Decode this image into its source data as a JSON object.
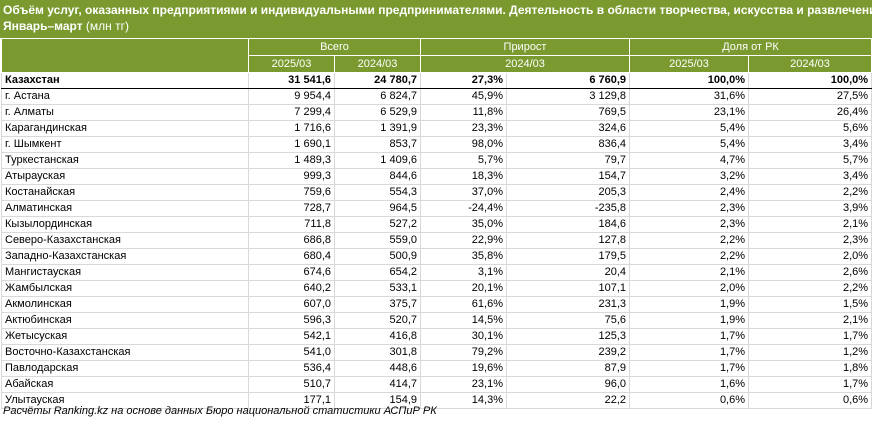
{
  "header": {
    "title": "Объём услуг, оказанных предприятиями и индивидуальными предпринимателями. Деятельность в области творчества, искусства и развлечений.",
    "period": "Январь–март",
    "unit": " (млн тг)"
  },
  "columns": {
    "group_total": "Всего",
    "group_growth": "Прирост",
    "group_share": "Доля от РК",
    "total_y1": "2025/03",
    "total_y2": "2024/03",
    "growth_period": "2024/03",
    "share_y1": "2025/03",
    "share_y2": "2024/03"
  },
  "rows": [
    {
      "name": "Казахстан",
      "v2025": "31 541,6",
      "v2024": "24 780,7",
      "pct": "27,3%",
      "abs": "6 760,9",
      "s2025": "100,0%",
      "s2024": "100,0%"
    },
    {
      "name": "г. Астана",
      "v2025": "9 954,4",
      "v2024": "6 824,7",
      "pct": "45,9%",
      "abs": "3 129,8",
      "s2025": "31,6%",
      "s2024": "27,5%"
    },
    {
      "name": "г. Алматы",
      "v2025": "7 299,4",
      "v2024": "6 529,9",
      "pct": "11,8%",
      "abs": "769,5",
      "s2025": "23,1%",
      "s2024": "26,4%"
    },
    {
      "name": "Карагандинская",
      "v2025": "1 716,6",
      "v2024": "1 391,9",
      "pct": "23,3%",
      "abs": "324,6",
      "s2025": "5,4%",
      "s2024": "5,6%"
    },
    {
      "name": "г. Шымкент",
      "v2025": "1 690,1",
      "v2024": "853,7",
      "pct": "98,0%",
      "abs": "836,4",
      "s2025": "5,4%",
      "s2024": "3,4%"
    },
    {
      "name": "Туркестанская",
      "v2025": "1 489,3",
      "v2024": "1 409,6",
      "pct": "5,7%",
      "abs": "79,7",
      "s2025": "4,7%",
      "s2024": "5,7%"
    },
    {
      "name": "Атырауская",
      "v2025": "999,3",
      "v2024": "844,6",
      "pct": "18,3%",
      "abs": "154,7",
      "s2025": "3,2%",
      "s2024": "3,4%"
    },
    {
      "name": "Костанайская",
      "v2025": "759,6",
      "v2024": "554,3",
      "pct": "37,0%",
      "abs": "205,3",
      "s2025": "2,4%",
      "s2024": "2,2%"
    },
    {
      "name": "Алматинская",
      "v2025": "728,7",
      "v2024": "964,5",
      "pct": "-24,4%",
      "abs": "-235,8",
      "s2025": "2,3%",
      "s2024": "3,9%"
    },
    {
      "name": "Кызылординская",
      "v2025": "711,8",
      "v2024": "527,2",
      "pct": "35,0%",
      "abs": "184,6",
      "s2025": "2,3%",
      "s2024": "2,1%"
    },
    {
      "name": "Северо-Казахстанская",
      "v2025": "686,8",
      "v2024": "559,0",
      "pct": "22,9%",
      "abs": "127,8",
      "s2025": "2,2%",
      "s2024": "2,3%"
    },
    {
      "name": "Западно-Казахстанская",
      "v2025": "680,4",
      "v2024": "500,9",
      "pct": "35,8%",
      "abs": "179,5",
      "s2025": "2,2%",
      "s2024": "2,0%"
    },
    {
      "name": "Мангистауская",
      "v2025": "674,6",
      "v2024": "654,2",
      "pct": "3,1%",
      "abs": "20,4",
      "s2025": "2,1%",
      "s2024": "2,6%"
    },
    {
      "name": "Жамбылская",
      "v2025": "640,2",
      "v2024": "533,1",
      "pct": "20,1%",
      "abs": "107,1",
      "s2025": "2,0%",
      "s2024": "2,2%"
    },
    {
      "name": "Акмолинская",
      "v2025": "607,0",
      "v2024": "375,7",
      "pct": "61,6%",
      "abs": "231,3",
      "s2025": "1,9%",
      "s2024": "1,5%"
    },
    {
      "name": "Актюбинская",
      "v2025": "596,3",
      "v2024": "520,7",
      "pct": "14,5%",
      "abs": "75,6",
      "s2025": "1,9%",
      "s2024": "2,1%"
    },
    {
      "name": "Жетысуская",
      "v2025": "542,1",
      "v2024": "416,8",
      "pct": "30,1%",
      "abs": "125,3",
      "s2025": "1,7%",
      "s2024": "1,7%"
    },
    {
      "name": "Восточно-Казахстанская",
      "v2025": "541,0",
      "v2024": "301,8",
      "pct": "79,2%",
      "abs": "239,2",
      "s2025": "1,7%",
      "s2024": "1,2%"
    },
    {
      "name": "Павлодарская",
      "v2025": "536,4",
      "v2024": "448,6",
      "pct": "19,6%",
      "abs": "87,9",
      "s2025": "1,7%",
      "s2024": "1,8%"
    },
    {
      "name": "Абайская",
      "v2025": "510,7",
      "v2024": "414,7",
      "pct": "23,1%",
      "abs": "96,0",
      "s2025": "1,6%",
      "s2024": "1,7%"
    },
    {
      "name": "Улытауская",
      "v2025": "177,1",
      "v2024": "154,9",
      "pct": "14,3%",
      "abs": "22,2",
      "s2025": "0,6%",
      "s2024": "0,6%"
    }
  ],
  "footer": "Расчёты Ranking.kz на основе данных Бюро национальной статистики АСПиР РК",
  "colors": {
    "header_bg": "#7a9a2f"
  }
}
